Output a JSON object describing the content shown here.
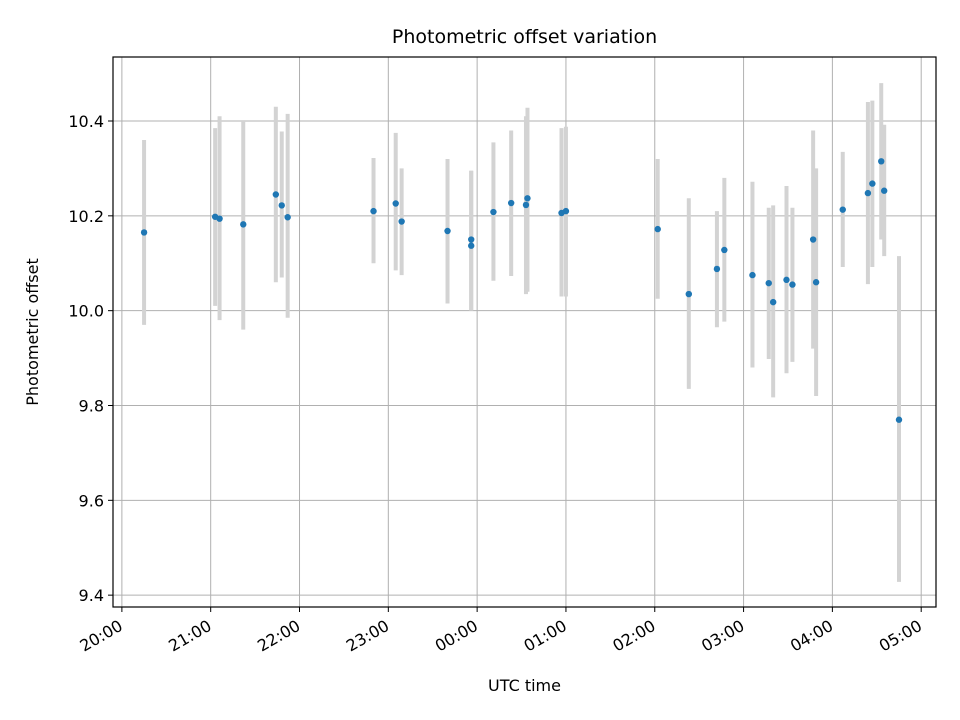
{
  "chart_data": {
    "type": "scatter",
    "title": "Photometric offset variation",
    "xlabel": "UTC time",
    "ylabel": "Photometric offset",
    "grid": true,
    "x_axis": "time",
    "xlim": [
      "19:54",
      "05:10"
    ],
    "ylim": [
      9.375,
      10.535
    ],
    "x_ticks": [
      "20:00",
      "21:00",
      "22:00",
      "23:00",
      "00:00",
      "01:00",
      "02:00",
      "03:00",
      "04:00",
      "05:00"
    ],
    "y_ticks": [
      "9.4",
      "9.6",
      "9.8",
      "10.0",
      "10.2",
      "10.4"
    ],
    "point_color": "#1f77b4",
    "errorbar_color": "#d3d3d3",
    "points": [
      {
        "x": "20:15",
        "y": 10.165,
        "lo": 9.97,
        "hi": 10.36
      },
      {
        "x": "21:03",
        "y": 10.198,
        "lo": 10.01,
        "hi": 10.385
      },
      {
        "x": "21:06",
        "y": 10.194,
        "lo": 9.98,
        "hi": 10.41
      },
      {
        "x": "21:22",
        "y": 10.182,
        "lo": 9.96,
        "hi": 10.4
      },
      {
        "x": "21:44",
        "y": 10.245,
        "lo": 10.06,
        "hi": 10.43
      },
      {
        "x": "21:48",
        "y": 10.222,
        "lo": 10.07,
        "hi": 10.378
      },
      {
        "x": "21:52",
        "y": 10.197,
        "lo": 9.985,
        "hi": 10.415
      },
      {
        "x": "22:50",
        "y": 10.21,
        "lo": 10.1,
        "hi": 10.322
      },
      {
        "x": "23:05",
        "y": 10.226,
        "lo": 10.085,
        "hi": 10.375
      },
      {
        "x": "23:09",
        "y": 10.188,
        "lo": 10.075,
        "hi": 10.3
      },
      {
        "x": "23:40",
        "y": 10.168,
        "lo": 10.015,
        "hi": 10.32
      },
      {
        "x": "23:56",
        "y": 10.15,
        "lo": 10.0,
        "hi": 10.295
      },
      {
        "x": "23:56",
        "y": 10.137,
        "lo": 10.0,
        "hi": 10.295
      },
      {
        "x": "00:11",
        "y": 10.208,
        "lo": 10.063,
        "hi": 10.355
      },
      {
        "x": "00:23",
        "y": 10.227,
        "lo": 10.073,
        "hi": 10.38
      },
      {
        "x": "00:33",
        "y": 10.223,
        "lo": 10.035,
        "hi": 10.41
      },
      {
        "x": "00:34",
        "y": 10.237,
        "lo": 10.04,
        "hi": 10.428
      },
      {
        "x": "00:57",
        "y": 10.206,
        "lo": 10.03,
        "hi": 10.385
      },
      {
        "x": "01:00",
        "y": 10.21,
        "lo": 10.03,
        "hi": 10.388
      },
      {
        "x": "02:02",
        "y": 10.172,
        "lo": 10.025,
        "hi": 10.32
      },
      {
        "x": "02:23",
        "y": 10.035,
        "lo": 9.835,
        "hi": 10.237
      },
      {
        "x": "02:42",
        "y": 10.088,
        "lo": 9.965,
        "hi": 10.21
      },
      {
        "x": "02:47",
        "y": 10.128,
        "lo": 9.977,
        "hi": 10.28
      },
      {
        "x": "03:06",
        "y": 10.075,
        "lo": 9.88,
        "hi": 10.272
      },
      {
        "x": "03:17",
        "y": 10.058,
        "lo": 9.898,
        "hi": 10.217
      },
      {
        "x": "03:20",
        "y": 10.018,
        "lo": 9.817,
        "hi": 10.222
      },
      {
        "x": "03:29",
        "y": 10.065,
        "lo": 9.868,
        "hi": 10.263
      },
      {
        "x": "03:33",
        "y": 10.055,
        "lo": 9.892,
        "hi": 10.217
      },
      {
        "x": "03:47",
        "y": 10.15,
        "lo": 9.92,
        "hi": 10.38
      },
      {
        "x": "03:49",
        "y": 10.06,
        "lo": 9.82,
        "hi": 10.3
      },
      {
        "x": "04:07",
        "y": 10.213,
        "lo": 10.092,
        "hi": 10.335
      },
      {
        "x": "04:24",
        "y": 10.248,
        "lo": 10.056,
        "hi": 10.44
      },
      {
        "x": "04:27",
        "y": 10.268,
        "lo": 10.092,
        "hi": 10.443
      },
      {
        "x": "04:33",
        "y": 10.315,
        "lo": 10.15,
        "hi": 10.48
      },
      {
        "x": "04:35",
        "y": 10.253,
        "lo": 10.115,
        "hi": 10.392
      },
      {
        "x": "04:45",
        "y": 9.77,
        "lo": 9.428,
        "hi": 10.115
      }
    ]
  }
}
